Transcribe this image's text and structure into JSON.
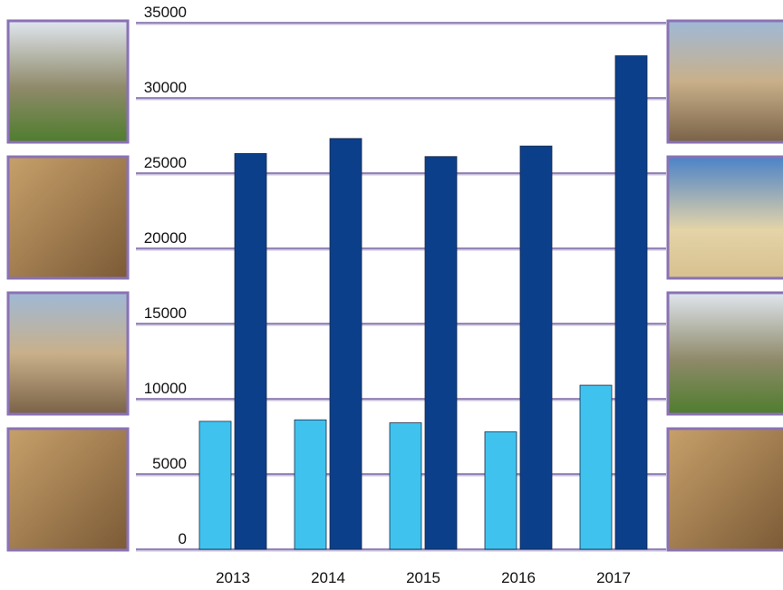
{
  "chart_data": {
    "type": "bar",
    "categories": [
      "2013",
      "2014",
      "2015",
      "2016",
      "2017"
    ],
    "series": [
      {
        "color": "#3fc3ee",
        "values": [
          8500,
          8600,
          8400,
          7800,
          10900
        ]
      },
      {
        "color": "#0b3f8a",
        "values": [
          26300,
          27300,
          26100,
          26800,
          32800
        ]
      }
    ],
    "ylim": [
      0,
      35000
    ],
    "yticks": [
      0,
      5000,
      10000,
      15000,
      20000,
      25000,
      30000,
      35000
    ],
    "grid": true
  }
}
